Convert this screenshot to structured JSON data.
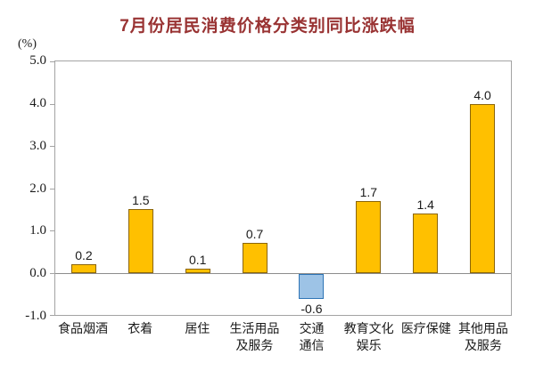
{
  "title": "7月份居民消费价格分类别同比涨跌幅",
  "y_axis": {
    "unit_label": "(%)",
    "ticks": [
      "5.0",
      "4.0",
      "3.0",
      "2.0",
      "1.0",
      "0.0",
      "-1.0"
    ],
    "max": 5.0,
    "min": -1.0
  },
  "chart_data": {
    "type": "bar",
    "title": "7月份居民消费价格分类别同比涨跌幅",
    "categories": [
      "食品烟酒",
      "衣着",
      "居住",
      "生活用品\n及服务",
      "交通\n通信",
      "教育文化\n娱乐",
      "医疗保健",
      "其他用品\n及服务"
    ],
    "values": [
      0.2,
      1.5,
      0.1,
      0.7,
      -0.6,
      1.7,
      1.4,
      4.0
    ],
    "data_labels": [
      "0.2",
      "1.5",
      "0.1",
      "0.7",
      "-0.6",
      "1.7",
      "1.4",
      "4.0"
    ],
    "xlabel": "",
    "ylabel": "(%)",
    "ylim": [
      -1.0,
      5.0
    ],
    "grid": false,
    "legend": "none"
  },
  "colors": {
    "title": "#993333",
    "axis_text": "#1a1a1a",
    "plot_border": "#a3a3a3",
    "zero_line": "#8c8c8c",
    "background": "#ffffff",
    "positive_fill": "#FFC000",
    "positive_border": "#8B6508",
    "negative_fill": "#9DC3E6",
    "negative_border": "#2E75B6"
  }
}
